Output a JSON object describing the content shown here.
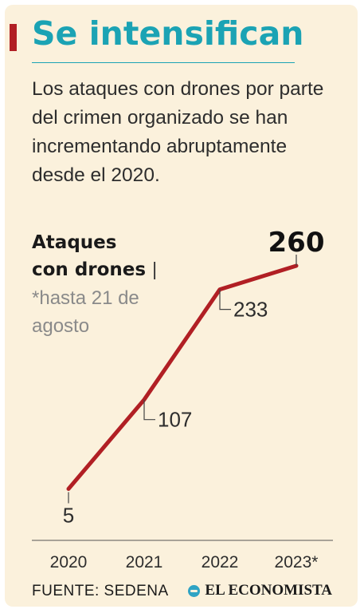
{
  "header": {
    "title": "Se intensifican",
    "subtitle": "Los ataques con drones por parte del crimen organizado se han incrementando abruptamente desde el 2020."
  },
  "chart_data": {
    "type": "line",
    "title_line1": "Ataques",
    "title_line2": "con drones",
    "title_separator": "|",
    "note": "*hasta 21 de agosto",
    "categories": [
      "2020",
      "2021",
      "2022",
      "2023*"
    ],
    "values": [
      5,
      107,
      233,
      260
    ],
    "labels": [
      "5",
      "107",
      "233",
      "260"
    ],
    "ylim": [
      0,
      260
    ],
    "grid": false,
    "line_color": "#b11f24"
  },
  "footer": {
    "source": "FUENTE: SEDENA",
    "brand": "EL ECONOMISTA"
  },
  "colors": {
    "accent": "#b11f24",
    "title": "#1ba3b4",
    "background": "#fbf1dc"
  }
}
